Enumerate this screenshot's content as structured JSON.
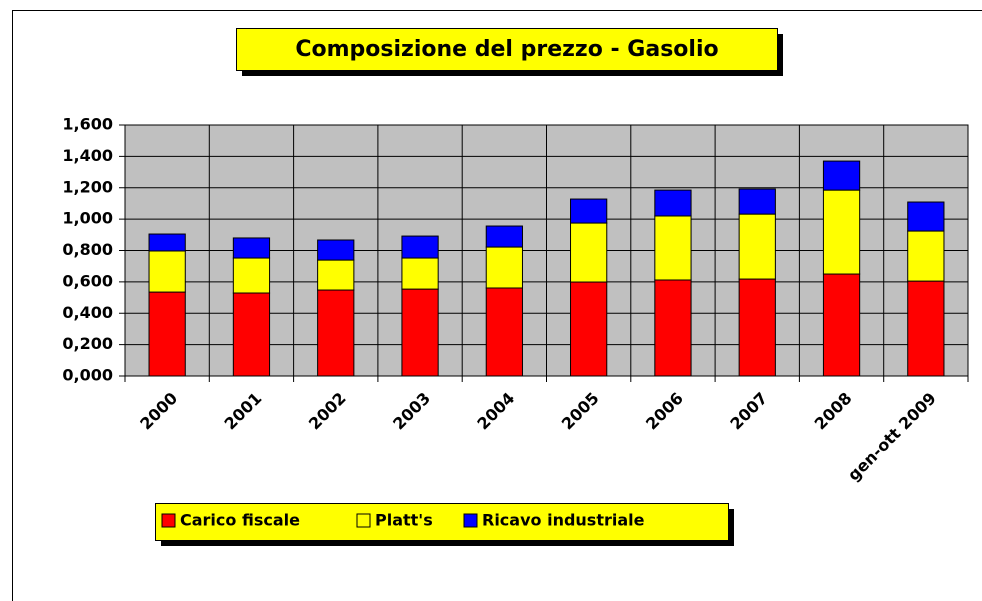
{
  "chart_data": {
    "type": "bar",
    "stacked": true,
    "title": "Composizione del prezzo - Gasolio",
    "categories": [
      "2000",
      "2001",
      "2002",
      "2003",
      "2004",
      "2005",
      "2006",
      "2007",
      "2008",
      "gen-ott 2009"
    ],
    "series": [
      {
        "name": "Carico fiscale",
        "color": "#ff0000",
        "values": [
          0.535,
          0.529,
          0.548,
          0.554,
          0.561,
          0.599,
          0.612,
          0.618,
          0.65,
          0.605
        ]
      },
      {
        "name": "Platt's",
        "color": "#ffff00",
        "values": [
          0.262,
          0.223,
          0.191,
          0.198,
          0.261,
          0.376,
          0.408,
          0.414,
          0.535,
          0.319
        ]
      },
      {
        "name": "Ricavo industriale",
        "color": "#0000ff",
        "values": [
          0.108,
          0.128,
          0.128,
          0.14,
          0.134,
          0.153,
          0.165,
          0.16,
          0.185,
          0.185
        ]
      }
    ],
    "ylim": [
      0,
      1.6
    ],
    "yticks": [
      {
        "value": 0,
        "label": "0,000"
      },
      {
        "value": 0.2,
        "label": "0,200"
      },
      {
        "value": 0.4,
        "label": "0,400"
      },
      {
        "value": 0.6,
        "label": "0,600"
      },
      {
        "value": 0.8,
        "label": "0,800"
      },
      {
        "value": 1.0,
        "label": "1,000"
      },
      {
        "value": 1.2,
        "label": "1,200"
      },
      {
        "value": 1.4,
        "label": "1,400"
      },
      {
        "value": 1.6,
        "label": "1,600"
      }
    ],
    "grid": true
  }
}
